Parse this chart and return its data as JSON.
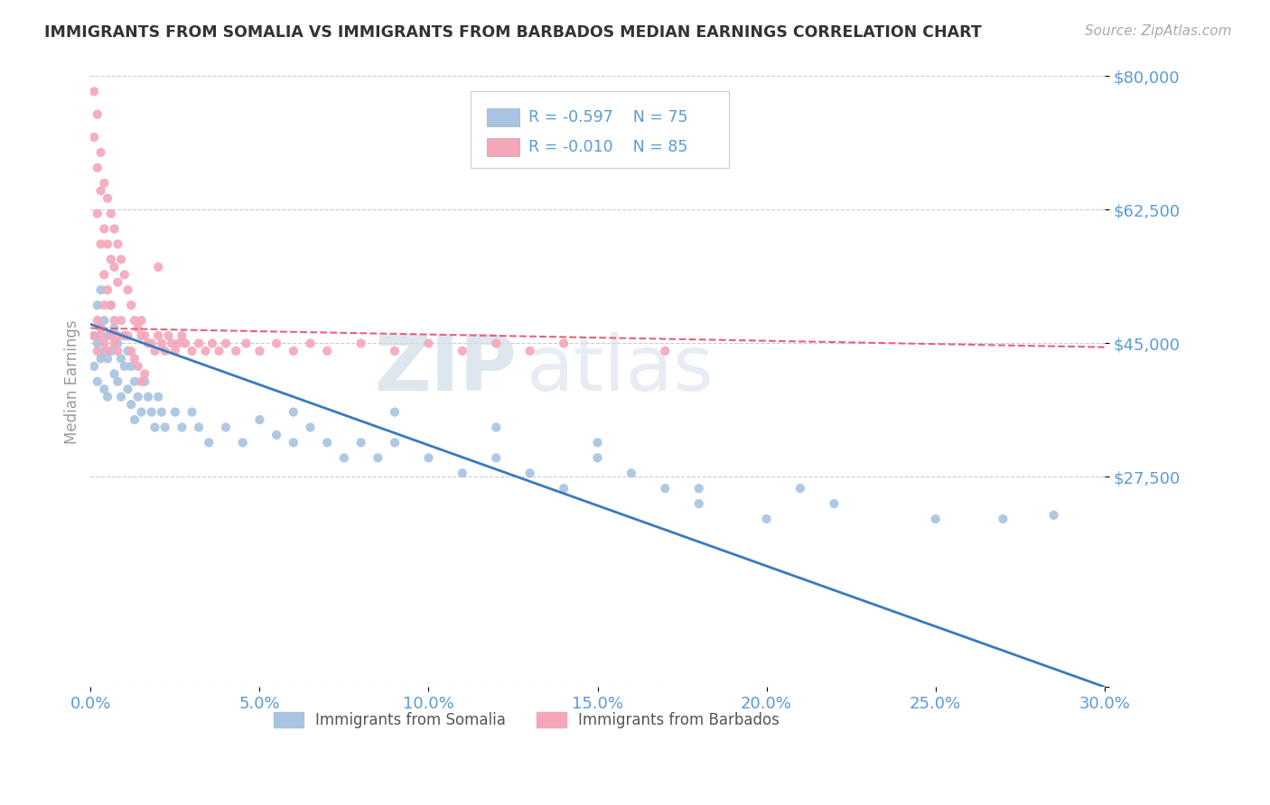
{
  "title": "IMMIGRANTS FROM SOMALIA VS IMMIGRANTS FROM BARBADOS MEDIAN EARNINGS CORRELATION CHART",
  "source": "Source: ZipAtlas.com",
  "ylabel": "Median Earnings",
  "xlim": [
    0.0,
    0.3
  ],
  "ylim": [
    0,
    80000
  ],
  "xticks": [
    0.0,
    0.05,
    0.1,
    0.15,
    0.2,
    0.25,
    0.3
  ],
  "yticks": [
    0,
    27500,
    45000,
    62500,
    80000
  ],
  "ytick_labels": [
    "",
    "$27,500",
    "$45,000",
    "$62,500",
    "$80,000"
  ],
  "xtick_labels": [
    "0.0%",
    "5.0%",
    "10.0%",
    "15.0%",
    "20.0%",
    "25.0%",
    "30.0%"
  ],
  "somalia_color": "#a8c4e0",
  "barbados_color": "#f4a7b9",
  "somalia_line_color": "#3a7abf",
  "barbados_line_color": "#e8607a",
  "grid_color": "#cccccc",
  "title_color": "#333333",
  "tick_label_color": "#5b9bd5",
  "watermark_zip": "ZIP",
  "watermark_atlas": "atlas",
  "somalia_x": [
    0.001,
    0.001,
    0.002,
    0.002,
    0.002,
    0.003,
    0.003,
    0.003,
    0.004,
    0.004,
    0.004,
    0.005,
    0.005,
    0.005,
    0.006,
    0.006,
    0.007,
    0.007,
    0.008,
    0.008,
    0.009,
    0.009,
    0.01,
    0.01,
    0.011,
    0.011,
    0.012,
    0.012,
    0.013,
    0.013,
    0.014,
    0.015,
    0.016,
    0.017,
    0.018,
    0.019,
    0.02,
    0.021,
    0.022,
    0.025,
    0.027,
    0.03,
    0.032,
    0.035,
    0.04,
    0.045,
    0.05,
    0.055,
    0.06,
    0.065,
    0.07,
    0.075,
    0.08,
    0.085,
    0.09,
    0.1,
    0.11,
    0.12,
    0.13,
    0.14,
    0.15,
    0.16,
    0.17,
    0.18,
    0.2,
    0.21,
    0.22,
    0.25,
    0.27,
    0.285,
    0.15,
    0.12,
    0.09,
    0.18,
    0.06
  ],
  "somalia_y": [
    46000,
    42000,
    50000,
    45000,
    40000,
    52000,
    47000,
    43000,
    48000,
    44000,
    39000,
    46000,
    43000,
    38000,
    50000,
    44000,
    47000,
    41000,
    45000,
    40000,
    43000,
    38000,
    46000,
    42000,
    44000,
    39000,
    42000,
    37000,
    40000,
    35000,
    38000,
    36000,
    40000,
    38000,
    36000,
    34000,
    38000,
    36000,
    34000,
    36000,
    34000,
    36000,
    34000,
    32000,
    34000,
    32000,
    35000,
    33000,
    32000,
    34000,
    32000,
    30000,
    32000,
    30000,
    32000,
    30000,
    28000,
    30000,
    28000,
    26000,
    30000,
    28000,
    26000,
    24000,
    22000,
    26000,
    24000,
    22000,
    22000,
    22500,
    32000,
    34000,
    36000,
    26000,
    36000
  ],
  "barbados_x": [
    0.001,
    0.001,
    0.002,
    0.002,
    0.002,
    0.003,
    0.003,
    0.003,
    0.004,
    0.004,
    0.004,
    0.004,
    0.005,
    0.005,
    0.005,
    0.006,
    0.006,
    0.006,
    0.007,
    0.007,
    0.007,
    0.008,
    0.008,
    0.008,
    0.009,
    0.009,
    0.01,
    0.01,
    0.011,
    0.011,
    0.012,
    0.012,
    0.013,
    0.013,
    0.014,
    0.014,
    0.015,
    0.015,
    0.016,
    0.016,
    0.017,
    0.018,
    0.019,
    0.02,
    0.021,
    0.022,
    0.023,
    0.024,
    0.025,
    0.026,
    0.027,
    0.028,
    0.03,
    0.032,
    0.034,
    0.036,
    0.038,
    0.04,
    0.043,
    0.046,
    0.05,
    0.055,
    0.06,
    0.065,
    0.07,
    0.08,
    0.09,
    0.1,
    0.11,
    0.12,
    0.001,
    0.002,
    0.003,
    0.004,
    0.005,
    0.006,
    0.007,
    0.008,
    0.002,
    0.003,
    0.13,
    0.14,
    0.02,
    0.17,
    0.015
  ],
  "barbados_y": [
    78000,
    72000,
    75000,
    68000,
    62000,
    70000,
    65000,
    58000,
    66000,
    60000,
    54000,
    50000,
    64000,
    58000,
    52000,
    62000,
    56000,
    50000,
    60000,
    55000,
    48000,
    58000,
    53000,
    46000,
    56000,
    48000,
    54000,
    46000,
    52000,
    46000,
    50000,
    44000,
    48000,
    43000,
    47000,
    42000,
    46000,
    40000,
    46000,
    41000,
    45000,
    45000,
    44000,
    46000,
    45000,
    44000,
    46000,
    45000,
    44000,
    45000,
    46000,
    45000,
    44000,
    45000,
    44000,
    45000,
    44000,
    45000,
    44000,
    45000,
    44000,
    45000,
    44000,
    45000,
    44000,
    45000,
    44000,
    45000,
    44000,
    45000,
    46000,
    44000,
    46000,
    45000,
    44000,
    46000,
    45000,
    44000,
    48000,
    47000,
    44000,
    45000,
    55000,
    44000,
    48000
  ],
  "somalia_trend_x": [
    0.0,
    0.3
  ],
  "somalia_trend_y": [
    47500,
    0
  ],
  "barbados_trend_x": [
    0.0,
    0.3
  ],
  "barbados_trend_y": [
    47000,
    44500
  ]
}
